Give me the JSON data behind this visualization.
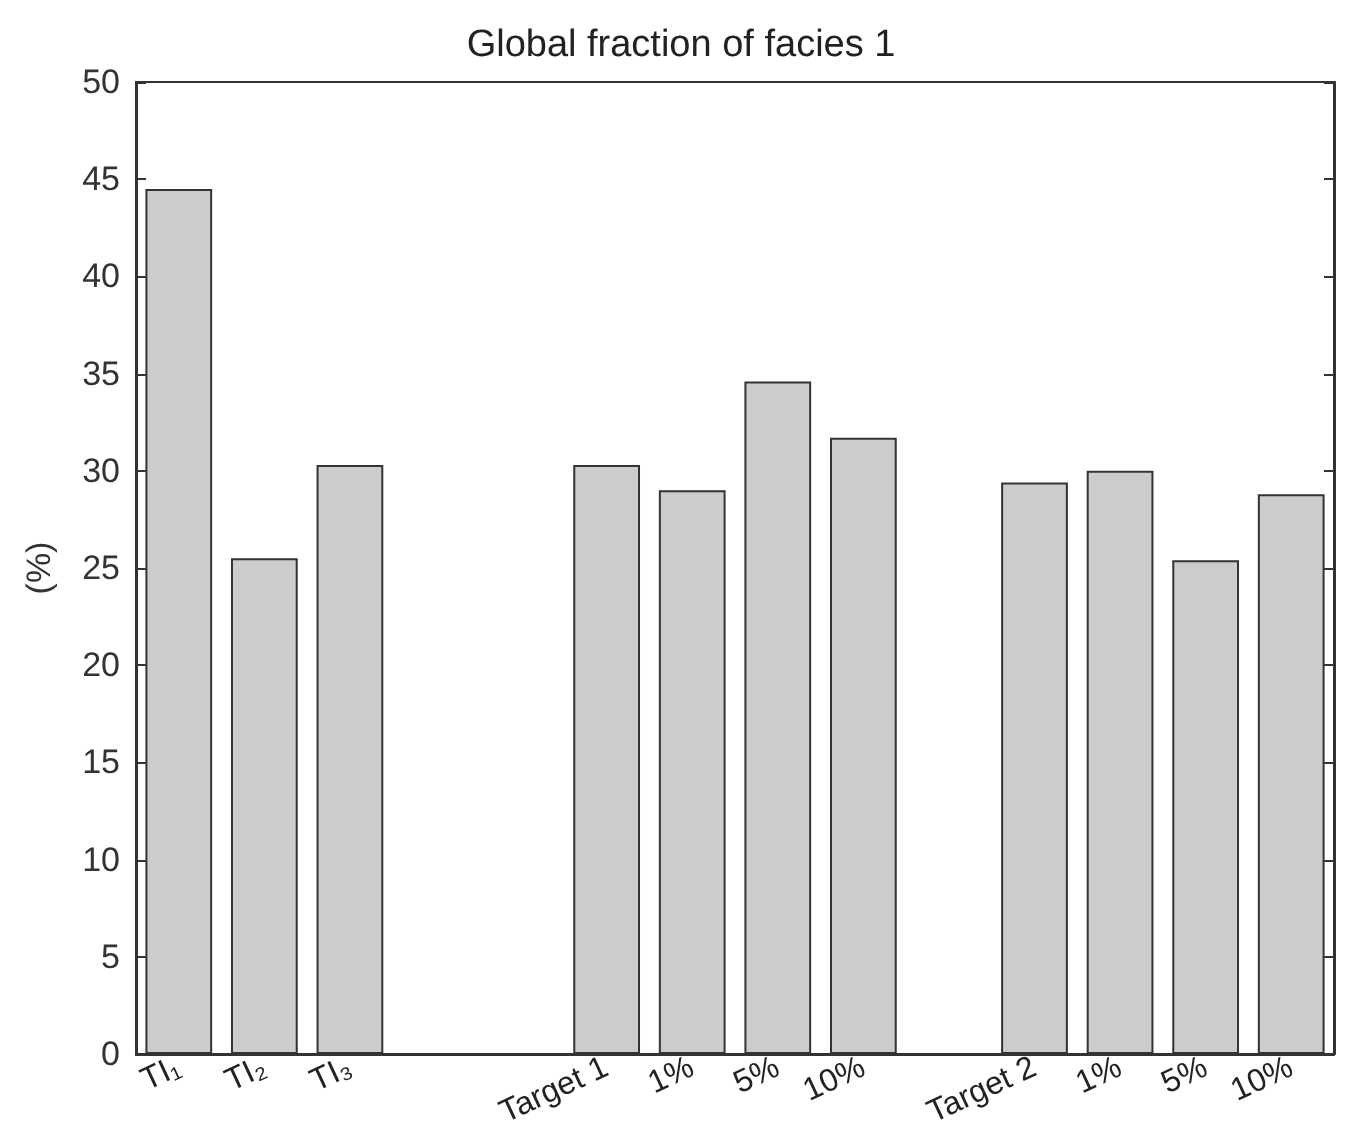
{
  "chart_data": {
    "type": "bar",
    "title": "Global fraction of facies 1",
    "ylabel": "(%)",
    "categories": [
      "TI₁",
      "TI₂",
      "TI₃",
      null,
      null,
      "Target 1",
      "1%",
      "5%",
      "10%",
      null,
      "Target 2",
      "1%",
      "5%",
      "10%"
    ],
    "values": [
      44.5,
      25.5,
      30.3,
      null,
      null,
      30.3,
      29.0,
      34.6,
      31.7,
      null,
      29.4,
      30.0,
      25.4,
      28.8
    ],
    "color": "#cccccc",
    "ylim": [
      0,
      50
    ],
    "yticks": [
      0,
      5,
      10,
      15,
      20,
      25,
      30,
      35,
      40,
      45,
      50
    ],
    "grid": false
  }
}
